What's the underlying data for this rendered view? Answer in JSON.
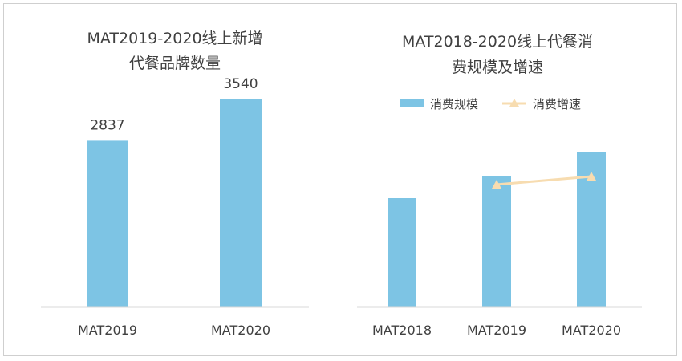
{
  "chart_data": [
    {
      "type": "bar",
      "title_lines": [
        "MAT2019-2020线上新增",
        "代餐品牌数量"
      ],
      "categories": [
        "MAT2019",
        "MAT2020"
      ],
      "values": [
        2837,
        3540
      ],
      "data_labels": [
        "2837",
        "3540"
      ],
      "ylim": [
        0,
        4100
      ],
      "grid": false,
      "colors": {
        "bar": "#7dc4e4"
      }
    },
    {
      "type": "bar",
      "title_lines": [
        "MAT2018-2020线上代餐消",
        "费规模及增速"
      ],
      "categories": [
        "MAT2018",
        "MAT2019",
        "MAT2020"
      ],
      "series": [
        {
          "name": "消费规模",
          "type": "bar",
          "values": [
            1.0,
            1.2,
            1.42
          ]
        },
        {
          "name": "消费增速",
          "type": "line",
          "values": [
            null,
            0.2,
            0.22
          ]
        }
      ],
      "legend_position": "top",
      "grid": false,
      "colors": {
        "bar": "#7dc4e4",
        "line": "#f7dcb0"
      }
    }
  ]
}
